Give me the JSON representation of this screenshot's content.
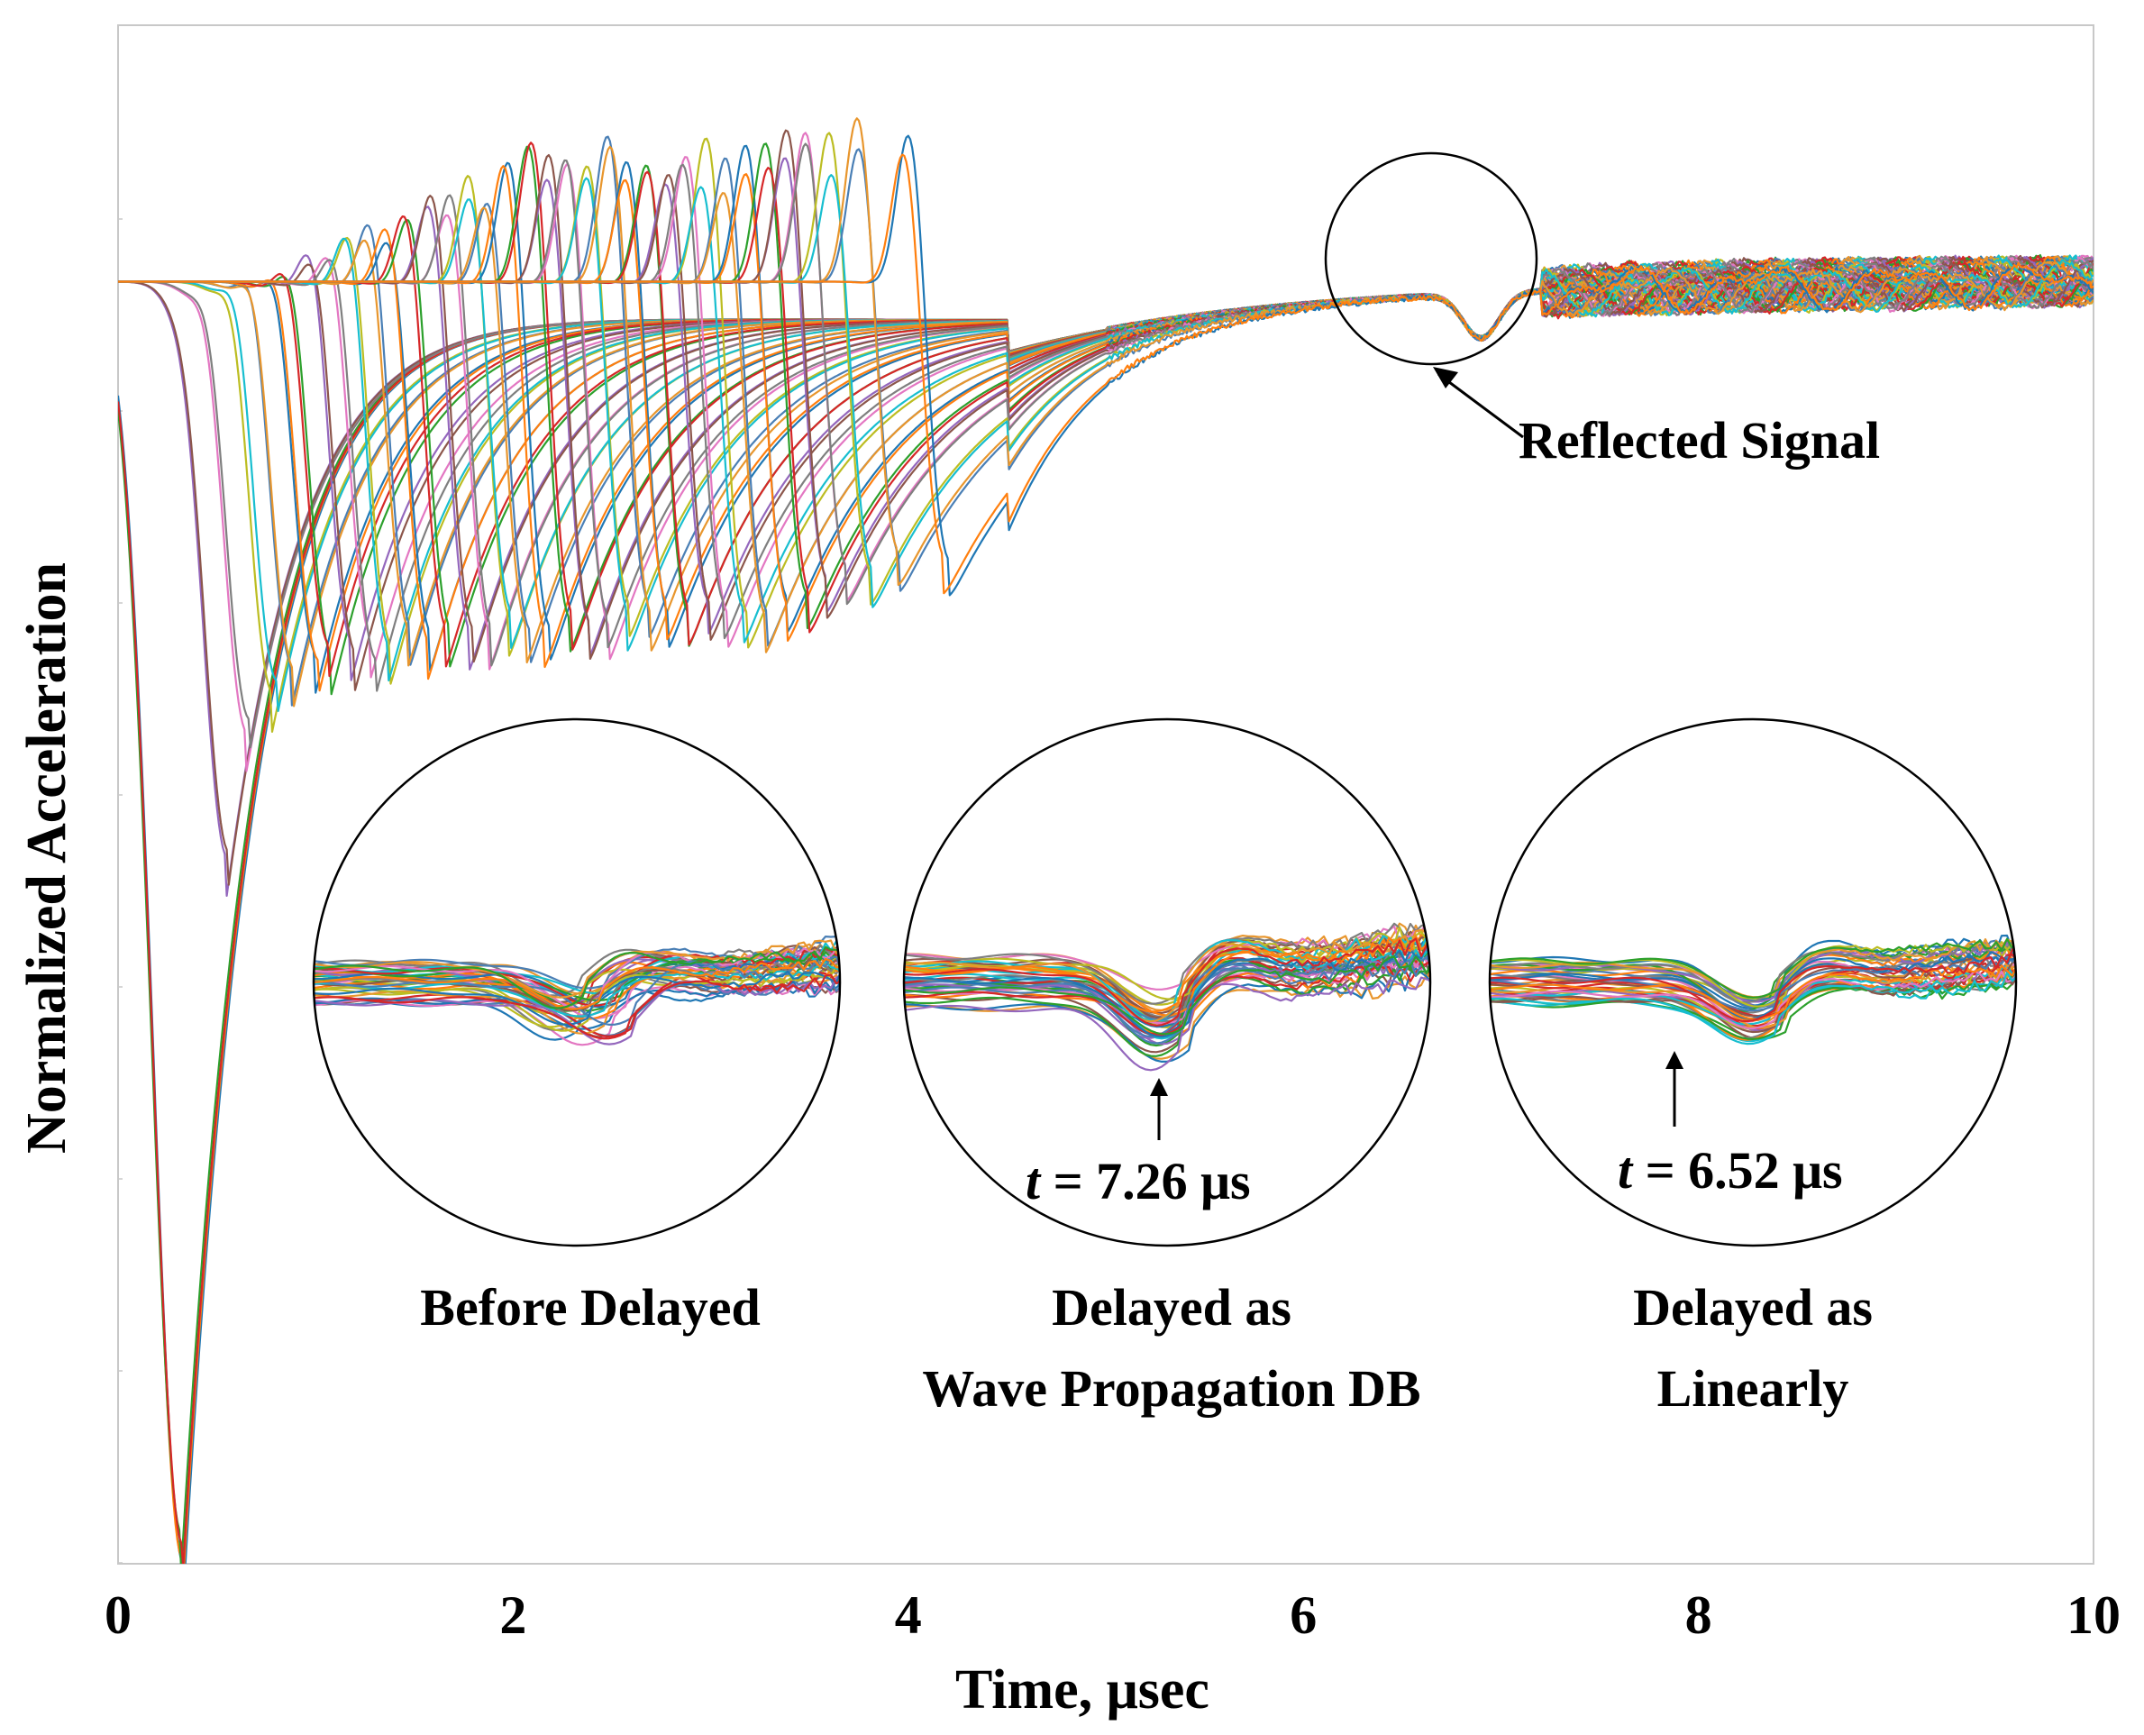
{
  "chart_data": {
    "type": "line",
    "title": "",
    "xlabel": "Time, μsec",
    "ylabel": "Normalized Acceleration",
    "xlim": [
      0,
      10
    ],
    "ylim": [
      -1.0,
      0.2
    ],
    "xticks": [
      "0",
      "2",
      "4",
      "6",
      "8",
      "10"
    ],
    "grid": false,
    "legend": "none",
    "series_description": "approximately 60 overlaid sensor acceleration traces, each with a sharp negative pulse whose arrival time shifts from 0.3 to 4.2 μsec",
    "pulse_arrival_times": [
      0.33,
      0.55,
      0.65,
      0.78,
      0.88,
      1.0,
      1.08,
      1.18,
      1.28,
      1.38,
      1.48,
      1.58,
      1.68,
      1.78,
      1.88,
      1.98,
      2.08,
      2.18,
      2.28,
      2.38,
      2.48,
      2.58,
      2.68,
      2.78,
      2.88,
      2.98,
      3.08,
      3.18,
      3.28,
      3.38,
      3.48,
      3.58,
      3.68,
      3.8,
      3.95,
      4.2
    ],
    "pulse_min_values": [
      -1.0,
      -0.45,
      -0.35,
      -0.32,
      -0.3,
      -0.3,
      -0.29,
      -0.29,
      -0.29,
      -0.28,
      -0.28,
      -0.28,
      -0.28,
      -0.28,
      -0.27,
      -0.27,
      -0.27,
      -0.27,
      -0.27,
      -0.27,
      -0.27,
      -0.26,
      -0.26,
      -0.26,
      -0.26,
      -0.26,
      -0.26,
      -0.26,
      -0.26,
      -0.25,
      -0.25,
      -0.24,
      -0.23,
      -0.23,
      -0.22,
      -0.22
    ],
    "reflected_signal_time": 6.9,
    "annotations": {
      "reflected": "Reflected Signal",
      "inset_1_label": "Before Delayed",
      "inset_2_label_line1": "Delayed as",
      "inset_2_label_line2": "Wave Propagation DB",
      "inset_2_time_var": "t",
      "inset_2_time_value": " = 7.26 μs",
      "inset_3_label_line1": "Delayed as",
      "inset_3_label_line2": "Linearly",
      "inset_3_time_var": "t",
      "inset_3_time_value": " = 6.52 μs"
    }
  },
  "colors": {
    "axis": "#c8c8c8",
    "palette": [
      "#1f77b4",
      "#ff7f0e",
      "#2ca02c",
      "#d62728",
      "#9467bd",
      "#8c564b",
      "#e377c2",
      "#7f7f7f",
      "#bcbd22",
      "#17becf",
      "#4a7fb5",
      "#e8962d"
    ]
  }
}
